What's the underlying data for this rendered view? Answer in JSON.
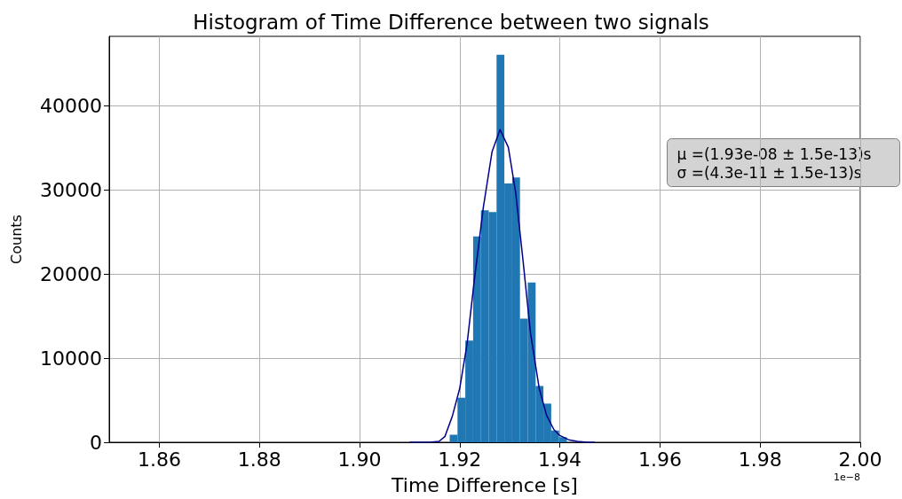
{
  "chart_data": {
    "type": "histogram",
    "title": "Histogram of Time Difference between two signals",
    "xlabel": "Time Difference [s]",
    "ylabel": "Counts",
    "bins": [
      1.918,
      1.91956,
      1.92112,
      1.92268,
      1.92424,
      1.9258,
      1.92736,
      1.92892,
      1.93048,
      1.93204,
      1.9336,
      1.93516,
      1.93672,
      1.93828,
      1.93984,
      1.9414
    ],
    "values": [
      900,
      5300,
      12100,
      24500,
      27600,
      27400,
      46100,
      30800,
      31500,
      14700,
      19000,
      6700,
      4600,
      1400,
      600
    ],
    "color": "#1f77b4",
    "series": [
      {
        "type": "line",
        "color": "#00008b",
        "x": [
          1.91,
          1.912,
          1.914,
          1.91588,
          1.91706,
          1.91853,
          1.92,
          1.92147,
          1.92294,
          1.92471,
          1.92647,
          1.92806,
          1.92971,
          1.93118,
          1.93265,
          1.93412,
          1.93588,
          1.93735,
          1.93882,
          1.94,
          1.94176,
          1.94353,
          1.9455,
          1.947
        ],
        "values": [
          0,
          0,
          0,
          100,
          700,
          3100,
          6400,
          11700,
          19400,
          27900,
          34600,
          37200,
          35100,
          29700,
          21600,
          13100,
          6400,
          3200,
          1500,
          800,
          300,
          100,
          0,
          0
        ]
      }
    ],
    "xlim": [
      1.85,
      2.0
    ],
    "xticks": [
      1.86,
      1.88,
      {
        "value": 1.9,
        "label": "1.90"
      },
      1.92,
      1.94,
      1.96,
      1.98,
      {
        "value": 2.0,
        "label": "2.00"
      }
    ],
    "ylim": [
      0,
      48300
    ],
    "yticks": [
      0,
      10000,
      20000,
      30000,
      40000
    ],
    "grid": true,
    "marker": "none",
    "annotations": [
      "μ =(1.93e-08 ± 1.5e-13)s",
      "σ =(4.3e-11 ± 1.5e-13)s",
      "1e−8"
    ]
  }
}
